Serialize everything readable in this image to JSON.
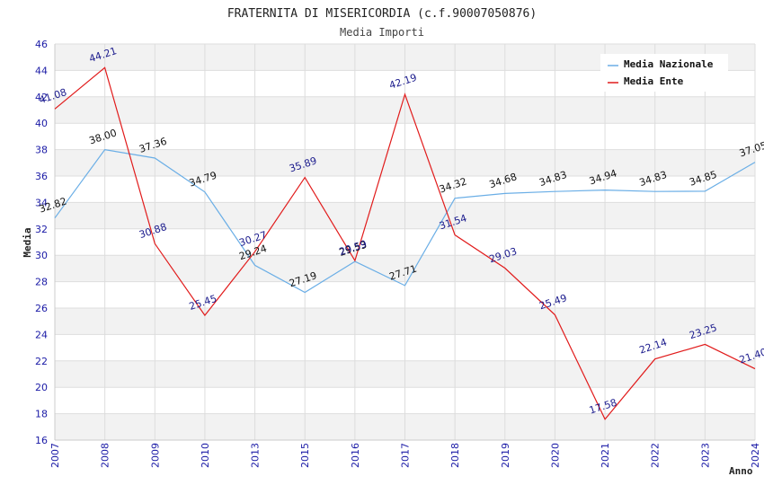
{
  "chart_data": {
    "type": "line",
    "title": "FRATERNITA DI MISERICORDIA (c.f.90007050876)",
    "subtitle": "Media Importi",
    "xlabel": "Anno",
    "ylabel": "Media",
    "categories": [
      "2007",
      "2008",
      "2009",
      "2010",
      "2013",
      "2015",
      "2016",
      "2017",
      "2018",
      "2019",
      "2020",
      "2021",
      "2022",
      "2023",
      "2024"
    ],
    "ylim": [
      16,
      46
    ],
    "yticks": [
      16,
      18,
      20,
      22,
      24,
      26,
      28,
      30,
      32,
      34,
      36,
      38,
      40,
      42,
      44,
      46
    ],
    "grid": true,
    "legend_position": "top-right",
    "series": [
      {
        "name": "Media Nazionale",
        "color": "#6aaee6",
        "label_color": "#111111",
        "values": [
          32.82,
          38.0,
          37.36,
          34.79,
          29.24,
          27.19,
          29.53,
          27.71,
          34.32,
          34.68,
          34.83,
          34.94,
          34.83,
          34.85,
          37.05
        ],
        "labels": [
          "32.82",
          "38.00",
          "37.36",
          "34.79",
          "29.24",
          "27.19",
          "29.53",
          "27.71",
          "34.32",
          "34.68",
          "34.83",
          "34.94",
          "34.83",
          "34.85",
          "37.05"
        ]
      },
      {
        "name": "Media Ente",
        "color": "#e11b1b",
        "label_color": "#1a1a8c",
        "values": [
          41.08,
          44.21,
          30.88,
          25.45,
          30.27,
          35.89,
          29.59,
          42.19,
          31.54,
          29.03,
          25.49,
          17.58,
          22.14,
          23.25,
          21.4
        ],
        "labels": [
          "41.08",
          "44.21",
          "30.88",
          "25.45",
          "30.27",
          "35.89",
          "29.59",
          "42.19",
          "31.54",
          "29.03",
          "25.49",
          "17.58",
          "22.14",
          "23.25",
          "21.40"
        ]
      }
    ]
  }
}
